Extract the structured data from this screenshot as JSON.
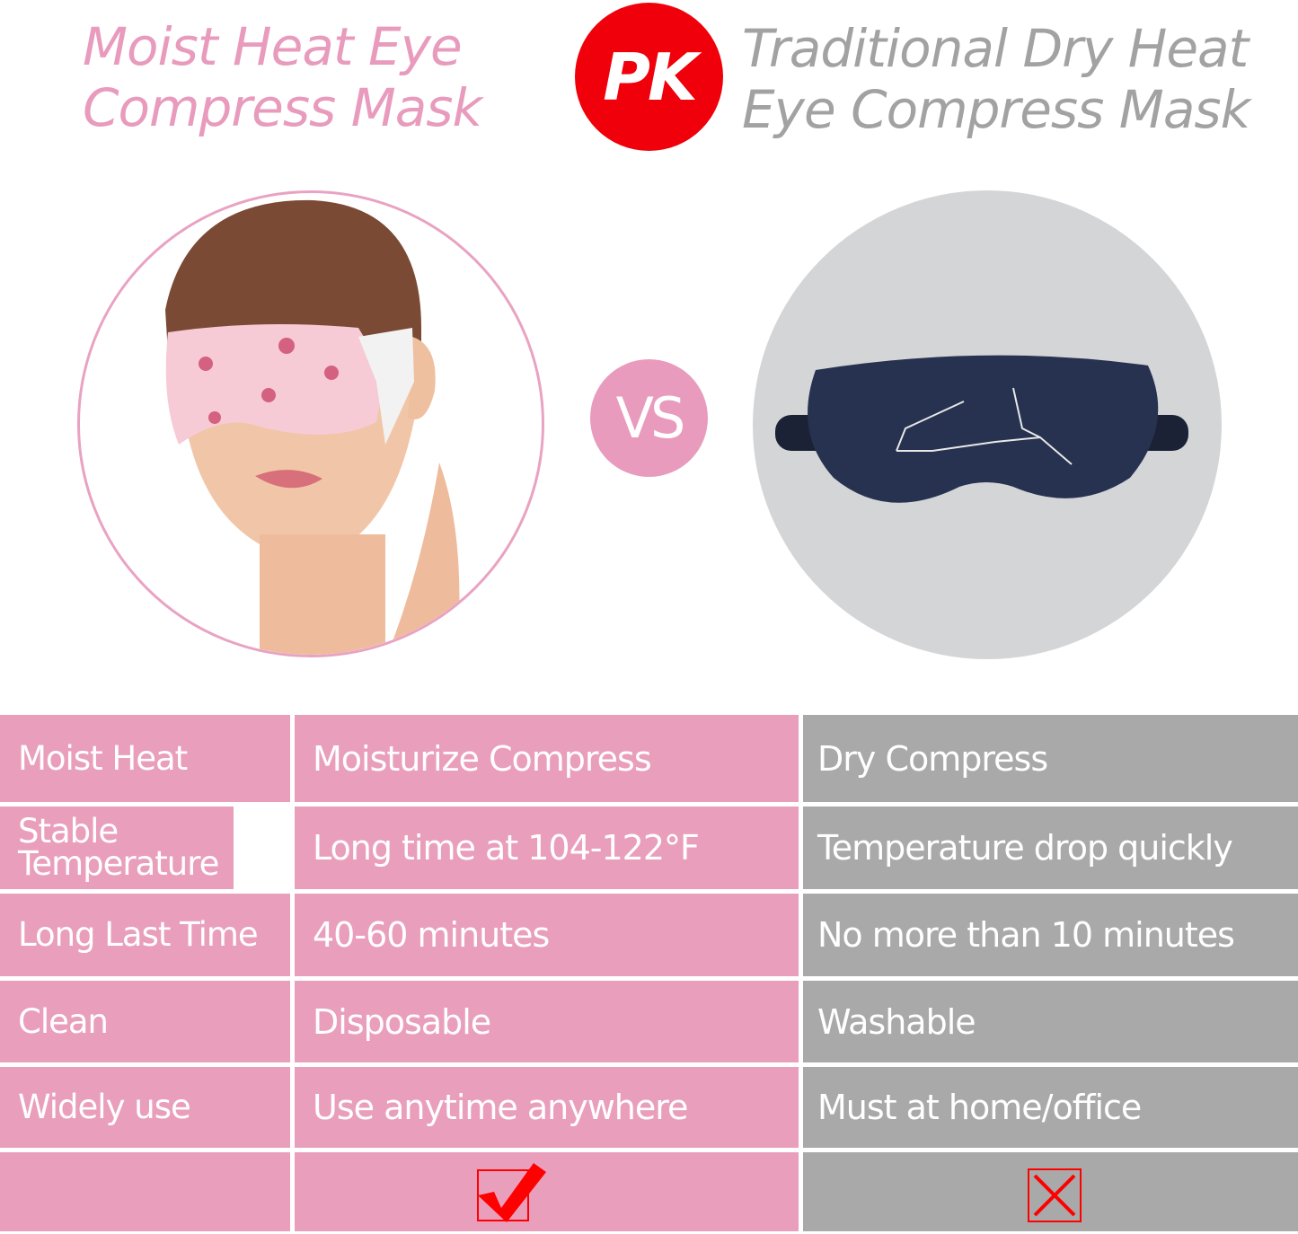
{
  "header": {
    "left_title_line1": "Moist Heat Eye",
    "left_title_line2": "Compress Mask",
    "pk_badge": "PK",
    "right_title_line1": "Traditional Dry Heat",
    "right_title_line2": "Eye Compress Mask"
  },
  "vs_badge": "VS",
  "colors": {
    "pink": "#e99fbc",
    "gray": "#a9a9a9",
    "badge_red": "#f0000a",
    "mark_red": "#ff0000"
  },
  "table": {
    "rows": [
      {
        "feature": "Moist Heat",
        "moist": "Moisturize Compress",
        "dry": "Dry Compress"
      },
      {
        "feature": "Stable Temperature",
        "moist": "Long time at 104-122°F",
        "dry": "Temperature drop quickly"
      },
      {
        "feature": "Long Last Time",
        "moist": "40-60 minutes",
        "dry": "No more than 10 minutes"
      },
      {
        "feature": "Clean",
        "moist": "Disposable",
        "dry": "Washable"
      },
      {
        "feature": "Widely use",
        "moist": "Use anytime anywhere",
        "dry": "Must at home/office"
      }
    ],
    "verdict": {
      "moist_icon": "checkmark-icon",
      "dry_icon": "x-mark-icon"
    }
  }
}
